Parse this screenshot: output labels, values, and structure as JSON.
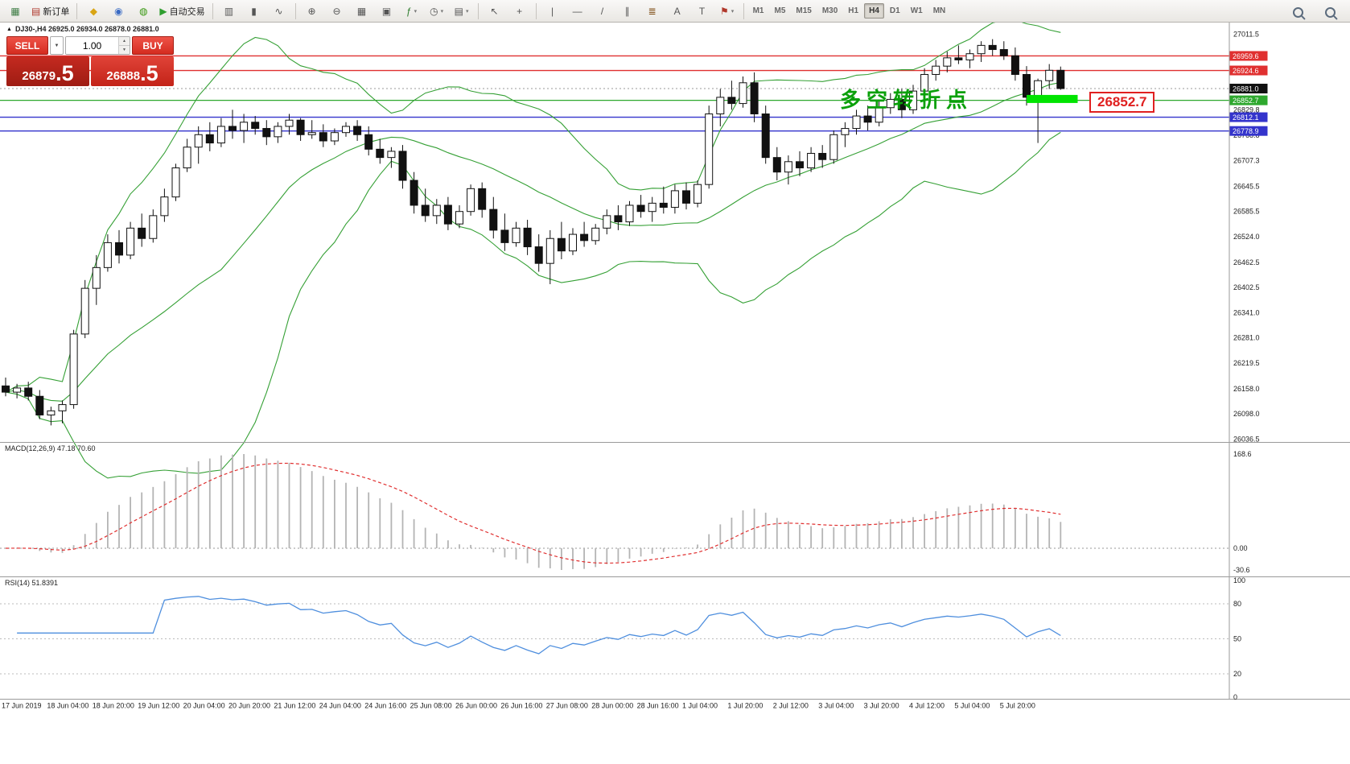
{
  "toolbar": {
    "groups": [
      {
        "items": [
          {
            "name": "chart-window-icon",
            "glyph": "▦",
            "color": "#3f7d46"
          },
          {
            "name": "new-order-button",
            "glyph": "▤",
            "color": "#b03a2e",
            "label": "新订单"
          }
        ]
      },
      {
        "items": [
          {
            "name": "market-watch-icon",
            "glyph": "◆",
            "color": "#d9a514"
          },
          {
            "name": "data-window-icon",
            "glyph": "◉",
            "color": "#3a6bc4"
          },
          {
            "name": "navigator-icon",
            "glyph": "◍",
            "color": "#36970f"
          },
          {
            "name": "autotrading-button",
            "glyph": "▶",
            "color": "#2f9e2f",
            "label": "自动交易"
          }
        ]
      },
      {
        "items": [
          {
            "name": "bar-chart-icon",
            "glyph": "▥"
          },
          {
            "name": "candlestick-chart-icon",
            "glyph": "▮"
          },
          {
            "name": "line-chart-icon",
            "glyph": "∿"
          }
        ]
      },
      {
        "items": [
          {
            "name": "zoom-in-icon",
            "glyph": "⊕"
          },
          {
            "name": "zoom-out-icon",
            "glyph": "⊖"
          },
          {
            "name": "tile-windows-icon",
            "glyph": "▦"
          },
          {
            "name": "arrange-windows-icon",
            "glyph": "▣"
          },
          {
            "name": "indicators-icon",
            "glyph": "ƒ",
            "color": "#2f7d2f",
            "dropdown": true
          },
          {
            "name": "periods-icon",
            "glyph": "◷",
            "dropdown": true
          },
          {
            "name": "templates-icon",
            "glyph": "▤",
            "dropdown": true
          }
        ]
      },
      {
        "items": [
          {
            "name": "cursor-icon",
            "glyph": "↖"
          },
          {
            "name": "crosshair-icon",
            "glyph": "+"
          }
        ]
      },
      {
        "items": [
          {
            "name": "vertical-line-icon",
            "glyph": "|"
          },
          {
            "name": "horizontal-line-icon",
            "glyph": "—"
          },
          {
            "name": "trendline-icon",
            "glyph": "/"
          },
          {
            "name": "channel-icon",
            "glyph": "∥"
          },
          {
            "name": "fibonacci-icon",
            "glyph": "≣",
            "color": "#7d4b12"
          },
          {
            "name": "text-icon",
            "glyph": "A"
          },
          {
            "name": "label-icon",
            "glyph": "T"
          },
          {
            "name": "arrows-icon",
            "glyph": "⚑",
            "color": "#b0372a",
            "dropdown": true
          }
        ]
      }
    ],
    "timeframes": [
      "M1",
      "M5",
      "M15",
      "M30",
      "H1",
      "H4",
      "D1",
      "W1",
      "MN"
    ],
    "active_timeframe": "H4",
    "right_items": [
      {
        "name": "search-icon",
        "kind": "magnifier"
      },
      {
        "name": "symbol-search-icon",
        "kind": "magnifier"
      }
    ]
  },
  "chart": {
    "collapse_glyph": "▲",
    "symbol_header": "DJ30-,H4  26925.0 26934.0 26878.0 26881.0",
    "annotation": "多空转折点",
    "callout_label": "26852.7",
    "bands_color": "#35a035",
    "price_axis": {
      "min": 26030,
      "max": 27040,
      "ticks": [
        "27011.5",
        "26829.8",
        "26768.8",
        "26707.3",
        "26645.5",
        "26585.5",
        "26524.0",
        "26462.5",
        "26402.5",
        "26341.0",
        "26281.0",
        "26219.5",
        "26158.0",
        "26098.0",
        "26036.5"
      ]
    },
    "hlines": [
      {
        "price": 26959.6,
        "color": "#e03030",
        "width": 1.4,
        "label": "26959.6"
      },
      {
        "price": 26924.6,
        "color": "#e03030",
        "width": 1.4,
        "label": "26924.6"
      },
      {
        "price": 26881.0,
        "color": "#999999",
        "width": 1,
        "dash": "2 3",
        "label": "26881.0",
        "label_bg": "#111111"
      },
      {
        "price": 26852.7,
        "color": "#2ea82e",
        "width": 1.2,
        "label": "26852.7"
      },
      {
        "price": 26812.1,
        "color": "#3434cc",
        "width": 1.4,
        "label": "26812.1"
      },
      {
        "price": 26778.9,
        "color": "#3434cc",
        "width": 1.4,
        "label": "26778.9"
      }
    ],
    "highlight": {
      "from": 90.5,
      "to": 95,
      "price": 26856,
      "color": "#00e400"
    },
    "time_labels": [
      "17 Jun 2019",
      "18 Jun 04:00",
      "18 Jun 20:00",
      "19 Jun 12:00",
      "20 Jun 04:00",
      "20 Jun 20:00",
      "21 Jun 12:00",
      "24 Jun 04:00",
      "24 Jun 16:00",
      "25 Jun 08:00",
      "26 Jun 00:00",
      "26 Jun 16:00",
      "27 Jun 08:00",
      "28 Jun 00:00",
      "28 Jun 16:00",
      "1 Jul 04:00",
      "1 Jul 20:00",
      "2 Jul 12:00",
      "3 Jul 04:00",
      "3 Jul 20:00",
      "4 Jul 12:00",
      "5 Jul 04:00",
      "5 Jul 20:00"
    ],
    "candles": [
      [
        26165,
        26185,
        26140,
        26150
      ],
      [
        26150,
        26170,
        26135,
        26160
      ],
      [
        26160,
        26175,
        26130,
        26140
      ],
      [
        26140,
        26155,
        26085,
        26095
      ],
      [
        26095,
        26115,
        26070,
        26105
      ],
      [
        26105,
        26130,
        26075,
        26120
      ],
      [
        26120,
        26300,
        26110,
        26290
      ],
      [
        26290,
        26420,
        26280,
        26400
      ],
      [
        26400,
        26480,
        26360,
        26450
      ],
      [
        26450,
        26530,
        26440,
        26510
      ],
      [
        26510,
        26540,
        26460,
        26480
      ],
      [
        26480,
        26560,
        26470,
        26545
      ],
      [
        26545,
        26580,
        26500,
        26520
      ],
      [
        26520,
        26590,
        26510,
        26575
      ],
      [
        26575,
        26640,
        26560,
        26620
      ],
      [
        26620,
        26700,
        26610,
        26690
      ],
      [
        26690,
        26760,
        26680,
        26740
      ],
      [
        26740,
        26790,
        26700,
        26770
      ],
      [
        26770,
        26800,
        26730,
        26750
      ],
      [
        26750,
        26810,
        26740,
        26790
      ],
      [
        26790,
        26830,
        26760,
        26780
      ],
      [
        26780,
        26820,
        26750,
        26800
      ],
      [
        26800,
        26815,
        26770,
        26785
      ],
      [
        26785,
        26805,
        26745,
        26765
      ],
      [
        26765,
        26800,
        26750,
        26790
      ],
      [
        26790,
        26820,
        26770,
        26805
      ],
      [
        26805,
        26810,
        26755,
        26770
      ],
      [
        26770,
        26805,
        26760,
        26775
      ],
      [
        26775,
        26795,
        26740,
        26755
      ],
      [
        26755,
        26785,
        26745,
        26775
      ],
      [
        26775,
        26800,
        26765,
        26790
      ],
      [
        26790,
        26805,
        26755,
        26770
      ],
      [
        26770,
        26790,
        26720,
        26735
      ],
      [
        26735,
        26760,
        26700,
        26715
      ],
      [
        26715,
        26740,
        26690,
        26730
      ],
      [
        26730,
        26745,
        26640,
        26660
      ],
      [
        26660,
        26680,
        26580,
        26600
      ],
      [
        26600,
        26640,
        26560,
        26575
      ],
      [
        26575,
        26615,
        26555,
        26600
      ],
      [
        26600,
        26620,
        26540,
        26555
      ],
      [
        26555,
        26600,
        26545,
        26585
      ],
      [
        26585,
        26650,
        26575,
        26640
      ],
      [
        26640,
        26655,
        26570,
        26590
      ],
      [
        26590,
        26620,
        26520,
        26540
      ],
      [
        26540,
        26580,
        26490,
        26510
      ],
      [
        26510,
        26560,
        26500,
        26545
      ],
      [
        26545,
        26565,
        26480,
        26500
      ],
      [
        26500,
        26530,
        26440,
        26460
      ],
      [
        26460,
        26540,
        26410,
        26520
      ],
      [
        26520,
        26560,
        26470,
        26490
      ],
      [
        26490,
        26545,
        26480,
        26530
      ],
      [
        26530,
        26560,
        26500,
        26515
      ],
      [
        26515,
        26555,
        26505,
        26545
      ],
      [
        26545,
        26590,
        26530,
        26575
      ],
      [
        26575,
        26600,
        26540,
        26560
      ],
      [
        26560,
        26610,
        26550,
        26600
      ],
      [
        26600,
        26625,
        26570,
        26585
      ],
      [
        26585,
        26620,
        26560,
        26605
      ],
      [
        26605,
        26645,
        26580,
        26595
      ],
      [
        26595,
        26650,
        26580,
        26635
      ],
      [
        26635,
        26655,
        26590,
        26605
      ],
      [
        26605,
        26660,
        26595,
        26650
      ],
      [
        26650,
        26840,
        26640,
        26820
      ],
      [
        26820,
        26880,
        26790,
        26860
      ],
      [
        26860,
        26900,
        26830,
        26845
      ],
      [
        26845,
        26910,
        26835,
        26895
      ],
      [
        26895,
        26920,
        26800,
        26820
      ],
      [
        26820,
        26840,
        26700,
        26715
      ],
      [
        26715,
        26740,
        26660,
        26680
      ],
      [
        26680,
        26720,
        26650,
        26705
      ],
      [
        26705,
        26730,
        26670,
        26690
      ],
      [
        26690,
        26740,
        26680,
        26725
      ],
      [
        26725,
        26745,
        26690,
        26710
      ],
      [
        26710,
        26780,
        26700,
        26770
      ],
      [
        26770,
        26800,
        26740,
        26785
      ],
      [
        26785,
        26830,
        26770,
        26815
      ],
      [
        26815,
        26840,
        26780,
        26800
      ],
      [
        26800,
        26850,
        26790,
        26835
      ],
      [
        26835,
        26870,
        26820,
        26855
      ],
      [
        26855,
        26880,
        26810,
        26830
      ],
      [
        26830,
        26890,
        26820,
        26875
      ],
      [
        26875,
        26930,
        26865,
        26915
      ],
      [
        26915,
        26950,
        26900,
        26935
      ],
      [
        26935,
        26970,
        26920,
        26955
      ],
      [
        26955,
        26985,
        26940,
        26950
      ],
      [
        26950,
        26975,
        26930,
        26965
      ],
      [
        26965,
        26995,
        26945,
        26985
      ],
      [
        26985,
        27000,
        26960,
        26975
      ],
      [
        26975,
        26995,
        26950,
        26960
      ],
      [
        26960,
        26980,
        26900,
        26915
      ],
      [
        26915,
        26935,
        26840,
        26860
      ],
      [
        26860,
        26905,
        26750,
        26900
      ],
      [
        26900,
        26940,
        26880,
        26925
      ],
      [
        26925,
        26934,
        26878,
        26881
      ]
    ]
  },
  "trade_panel": {
    "sell_label": "SELL",
    "buy_label": "BUY",
    "combo_glyph": "▼",
    "volume": "1.00",
    "stepper_up": "▲",
    "stepper_down": "▼",
    "sell_price_main": "26879",
    "sell_price_big": ".5",
    "buy_price_main": "26888",
    "buy_price_big": ".5"
  },
  "macd": {
    "label": "MACD(12,26,9) 47.18 70.60",
    "ticks": [
      "168.6",
      "0.00",
      "-30.6"
    ],
    "signal_color": "#e03030",
    "bar_color": "#b4b4b4"
  },
  "rsi": {
    "label": "RSI(14) 51.8391",
    "ticks": [
      "100",
      "80",
      "50",
      "20",
      "0"
    ],
    "levels": [
      80,
      50,
      20
    ],
    "line_color": "#4f8fde"
  }
}
